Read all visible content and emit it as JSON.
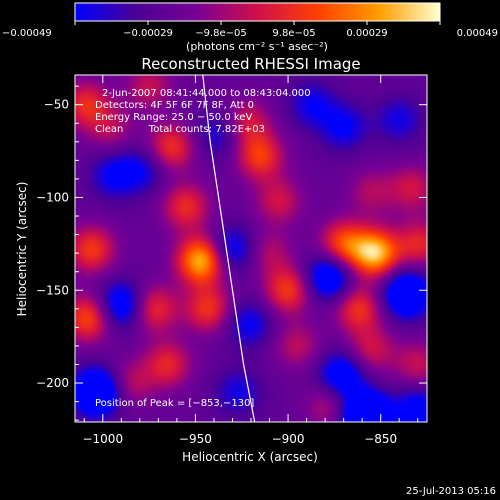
{
  "chart_data": {
    "type": "heatmap",
    "title": "Reconstructed RHESSI Image",
    "xlabel": "Heliocentric X (arcsec)",
    "ylabel": "Heliocentric Y (arcsec)",
    "xlim": [
      -1015,
      -825
    ],
    "ylim": [
      -221,
      -34
    ],
    "x_ticks": [
      {
        "value": -1000,
        "label": "−1000"
      },
      {
        "value": -950,
        "label": "−950"
      },
      {
        "value": -900,
        "label": "−900"
      },
      {
        "value": -850,
        "label": "−850"
      }
    ],
    "y_ticks": [
      {
        "value": -50,
        "label": "−50"
      },
      {
        "value": -100,
        "label": "−100"
      },
      {
        "value": -150,
        "label": "−150"
      },
      {
        "value": -200,
        "label": "−200"
      }
    ],
    "colorbar": {
      "range": [
        -0.00049,
        0.00049
      ],
      "tick_labels": [
        "−0.00049",
        "−0.00029",
        "−9.8e−05",
        "9.8e−05",
        "0.00029",
        "0.00049"
      ],
      "unit": "(photons cm⁻² s⁻¹ asec⁻²)",
      "colormap": [
        "#0000ff",
        "#4b0096",
        "#7a0094",
        "#d0104a",
        "#ff4000",
        "#ff9d00",
        "#ffffd0"
      ]
    },
    "annotations": [
      "2‑Jun‑2007 08:41:44.000 to 08:43:04.000",
      "Detectors: 4F 5F 6F 7F 8F, Att 0",
      "Energy Range: 25.0 − 50.0 keV",
      "Clean        Total counts: 7.82E+03"
    ],
    "peak_label": "Position of Peak = [−853,−130]",
    "peak": {
      "x": -853,
      "y": -130
    },
    "limb_curve": [
      [
        -946,
        -34
      ],
      [
        -942,
        -70
      ],
      [
        -936,
        -110
      ],
      [
        -930,
        -150
      ],
      [
        -924,
        -190
      ],
      [
        -918,
        -221
      ]
    ],
    "blobs": [
      {
        "x": -1009,
        "y": -50,
        "v": 0.8
      },
      {
        "x": -1006,
        "y": -128,
        "v": 0.9
      },
      {
        "x": -1008,
        "y": -165,
        "v": 1.0
      },
      {
        "x": -996,
        "y": -63,
        "v": 0.45
      },
      {
        "x": -975,
        "y": -40,
        "v": 0.55
      },
      {
        "x": -963,
        "y": -73,
        "v": 0.85
      },
      {
        "x": -955,
        "y": -105,
        "v": 0.8
      },
      {
        "x": -947,
        "y": -134,
        "v": 1.5
      },
      {
        "x": -943,
        "y": -160,
        "v": 0.85
      },
      {
        "x": -972,
        "y": -160,
        "v": 0.8
      },
      {
        "x": -965,
        "y": -190,
        "v": 0.75
      },
      {
        "x": -985,
        "y": -200,
        "v": 0.5
      },
      {
        "x": -922,
        "y": -60,
        "v": 0.65
      },
      {
        "x": -915,
        "y": -78,
        "v": 0.9
      },
      {
        "x": -905,
        "y": -102,
        "v": 0.6
      },
      {
        "x": -910,
        "y": -130,
        "v": 0.45
      },
      {
        "x": -900,
        "y": -150,
        "v": 0.9
      },
      {
        "x": -895,
        "y": -180,
        "v": 0.5
      },
      {
        "x": -878,
        "y": -212,
        "v": 0.5
      },
      {
        "x": -870,
        "y": -125,
        "v": 1.0
      },
      {
        "x": -853,
        "y": -130,
        "v": 1.55
      },
      {
        "x": -862,
        "y": -160,
        "v": 0.85
      },
      {
        "x": -855,
        "y": -97,
        "v": 0.45
      },
      {
        "x": -833,
        "y": -95,
        "v": 0.6
      },
      {
        "x": -829,
        "y": -125,
        "v": 0.75
      },
      {
        "x": -855,
        "y": -182,
        "v": 0.6
      },
      {
        "x": -830,
        "y": -190,
        "v": 0.55
      },
      {
        "x": -1003,
        "y": -205,
        "v": -1.3
      },
      {
        "x": -990,
        "y": -158,
        "v": -0.9
      },
      {
        "x": -994,
        "y": -88,
        "v": -0.6
      },
      {
        "x": -978,
        "y": -85,
        "v": -0.5
      },
      {
        "x": -937,
        "y": -66,
        "v": -0.5
      },
      {
        "x": -930,
        "y": -128,
        "v": -0.7
      },
      {
        "x": -921,
        "y": -168,
        "v": -0.6
      },
      {
        "x": -927,
        "y": -205,
        "v": -0.5
      },
      {
        "x": -887,
        "y": -50,
        "v": -0.55
      },
      {
        "x": -870,
        "y": -62,
        "v": -0.6
      },
      {
        "x": -878,
        "y": -143,
        "v": -1.0
      },
      {
        "x": -871,
        "y": -196,
        "v": -0.9
      },
      {
        "x": -858,
        "y": -218,
        "v": -1.6
      },
      {
        "x": -836,
        "y": -152,
        "v": -1.2
      },
      {
        "x": -840,
        "y": -58,
        "v": -0.5
      },
      {
        "x": -830,
        "y": -215,
        "v": -0.8
      }
    ]
  },
  "footer": {
    "timestamp": "25-Jul-2013 05:16"
  }
}
